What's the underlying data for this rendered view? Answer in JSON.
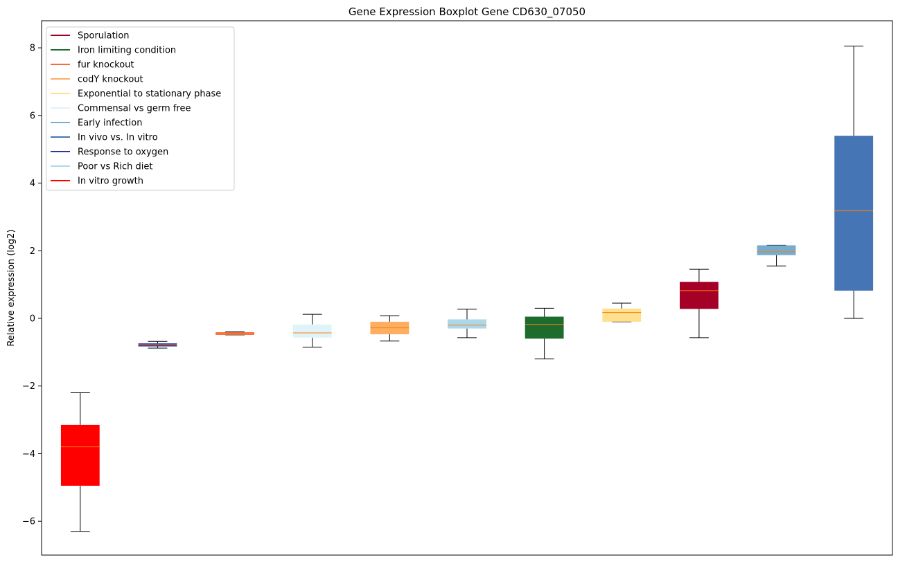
{
  "chart_data": {
    "type": "box",
    "title": "Gene Expression Boxplot Gene CD630_07050",
    "ylabel": "Relative expression (log2)",
    "xlabel": "",
    "ylim": [
      -7,
      8.8
    ],
    "yticks": [
      -6,
      -4,
      -2,
      0,
      2,
      4,
      6,
      8
    ],
    "legend_position": "top-left",
    "grid": false,
    "legend": [
      {
        "label": "Sporulation",
        "color": "#a50026"
      },
      {
        "label": "Iron limiting condition",
        "color": "#1e6b2e"
      },
      {
        "label": "fur knockout",
        "color": "#f46d43"
      },
      {
        "label": "codY knockout",
        "color": "#fdae61"
      },
      {
        "label": "Exponential to stationary phase",
        "color": "#fee090"
      },
      {
        "label": "Commensal vs germ free",
        "color": "#e0f3f8"
      },
      {
        "label": "Early infection",
        "color": "#74add1"
      },
      {
        "label": "In vivo vs. In vitro",
        "color": "#4575b4"
      },
      {
        "label": "Response to oxygen",
        "color": "#313695"
      },
      {
        "label": "Poor vs Rich diet",
        "color": "#abd9e9"
      },
      {
        "label": "In vitro growth",
        "color": "#ff0000"
      }
    ],
    "boxes": [
      {
        "series": "In vitro growth",
        "color": "#ff0000",
        "whislo": -6.3,
        "q1": -4.95,
        "med": -3.8,
        "q3": -3.15,
        "whishi": -2.2
      },
      {
        "series": "Response to oxygen",
        "color": "#313695",
        "whislo": -0.88,
        "q1": -0.83,
        "med": -0.78,
        "q3": -0.74,
        "whishi": -0.68
      },
      {
        "series": "fur knockout",
        "color": "#f46d43",
        "whislo": -0.49,
        "q1": -0.49,
        "med": -0.45,
        "q3": -0.41,
        "whishi": -0.4
      },
      {
        "series": "Commensal vs germ free",
        "color": "#e0f3f8",
        "whislo": -0.85,
        "q1": -0.57,
        "med": -0.43,
        "q3": -0.18,
        "whishi": 0.12
      },
      {
        "series": "codY knockout",
        "color": "#fdae61",
        "whislo": -0.67,
        "q1": -0.47,
        "med": -0.28,
        "q3": -0.1,
        "whishi": 0.08
      },
      {
        "series": "Poor vs Rich diet",
        "color": "#abd9e9",
        "whislo": -0.57,
        "q1": -0.3,
        "med": -0.2,
        "q3": -0.03,
        "whishi": 0.27
      },
      {
        "series": "Iron limiting condition",
        "color": "#1e6b2e",
        "whislo": -1.2,
        "q1": -0.6,
        "med": -0.18,
        "q3": 0.05,
        "whishi": 0.3
      },
      {
        "series": "Exponential to stationary phase",
        "color": "#fee090",
        "whislo": -0.1,
        "q1": -0.1,
        "med": 0.17,
        "q3": 0.29,
        "whishi": 0.45
      },
      {
        "series": "Sporulation",
        "color": "#a50026",
        "whislo": -0.57,
        "q1": 0.28,
        "med": 0.82,
        "q3": 1.08,
        "whishi": 1.45
      },
      {
        "series": "Early infection",
        "color": "#74add1",
        "whislo": 1.55,
        "q1": 1.87,
        "med": 1.97,
        "q3": 2.16,
        "whishi": 2.16
      },
      {
        "series": "In vivo vs. In vitro",
        "color": "#4575b4",
        "whislo": 0.0,
        "q1": 0.82,
        "med": 3.18,
        "q3": 5.4,
        "whishi": 8.05
      }
    ]
  }
}
